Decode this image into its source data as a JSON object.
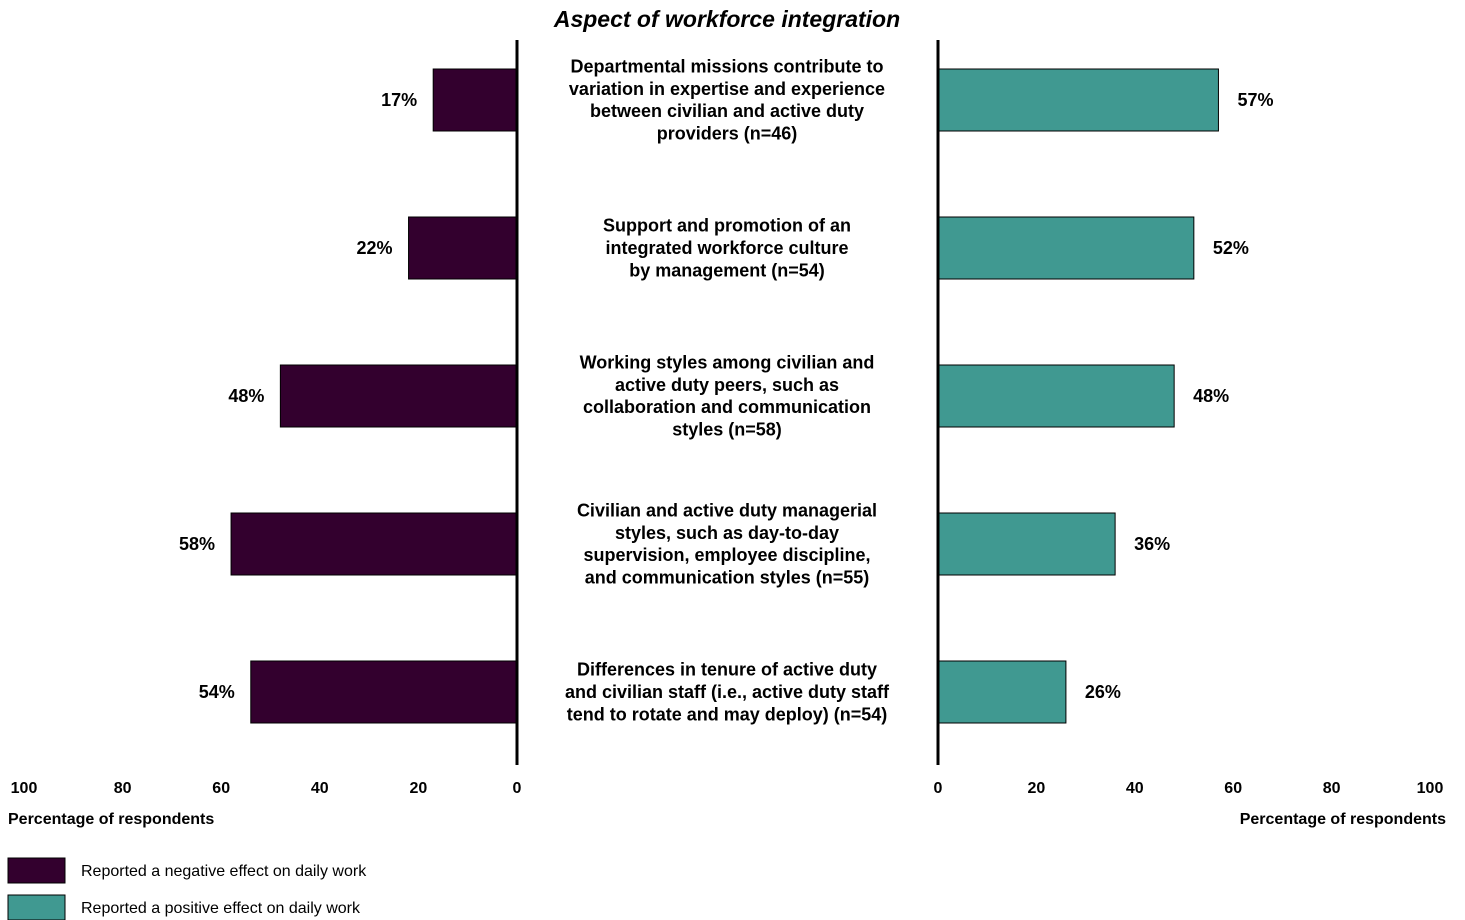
{
  "chart_data": {
    "type": "bar",
    "title": "Aspect of workforce integration",
    "categories": [
      [
        "Departmental missions contribute to",
        "variation in expertise and experience",
        "between civilian and active duty",
        "providers (n=46)"
      ],
      [
        "Support and promotion of an",
        "integrated workforce culture",
        "by management (n=54)"
      ],
      [
        "Working styles among civilian and",
        "active duty peers, such as",
        "collaboration and communication",
        "styles (n=58)"
      ],
      [
        "Civilian and active duty managerial",
        "styles, such as day-to-day",
        "supervision, employee discipline,",
        "and communication styles (n=55)"
      ],
      [
        "Differences in tenure of active duty",
        "and civilian staff (i.e., active duty staff",
        "tend to rotate and may deploy) (n=54)"
      ]
    ],
    "series": [
      {
        "name": "Reported a negative effect on daily work",
        "color": "#33002e",
        "values": [
          17,
          22,
          48,
          58,
          54
        ],
        "labels": [
          "17%",
          "22%",
          "48%",
          "58%",
          "54%"
        ]
      },
      {
        "name": "Reported a positive effect on daily work",
        "color": "#409991",
        "values": [
          57,
          52,
          48,
          36,
          26
        ],
        "labels": [
          "57%",
          "52%",
          "48%",
          "36%",
          "26%"
        ]
      }
    ],
    "left_axis": {
      "label": "Percentage of respondents",
      "ticks": [
        "100",
        "80",
        "60",
        "40",
        "20",
        "0"
      ],
      "range": [
        0,
        100
      ],
      "reversed": true
    },
    "right_axis": {
      "label": "Percentage of respondents",
      "ticks": [
        "0",
        "20",
        "40",
        "60",
        "80",
        "100"
      ],
      "range": [
        0,
        100
      ]
    },
    "grid": false,
    "legend_position": "bottom-left"
  }
}
